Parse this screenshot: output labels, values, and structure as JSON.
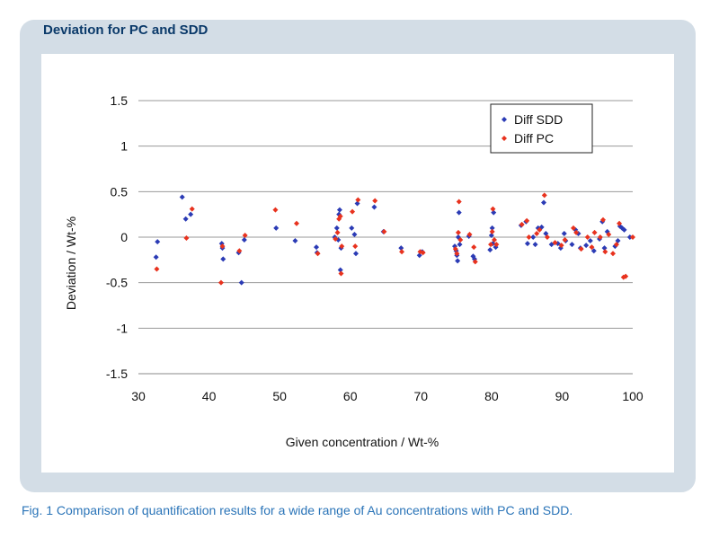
{
  "panel": {
    "title": "Deviation for PC and SDD"
  },
  "caption": "Fig. 1 Comparison of quantification results for a wide range of Au concentrations with PC and SDD.",
  "colors": {
    "panel_bg": "#d3dde6",
    "title": "#0b3a6a",
    "caption": "#2a74b8",
    "sdd": "#2b3bb5",
    "pc": "#e8321e"
  },
  "chart_data": {
    "type": "scatter",
    "title": "",
    "xlabel": "Given concentration / Wt-%",
    "ylabel": "Deviation / Wt-%",
    "xlim": [
      30,
      100
    ],
    "ylim": [
      -1.5,
      1.5
    ],
    "xticks": [
      "30",
      "40",
      "50",
      "60",
      "70",
      "80",
      "90",
      "100"
    ],
    "yticks": [
      "1.5",
      "1",
      "0.5",
      "0",
      "-0.5",
      "-1",
      "-1.5"
    ],
    "grid": "horizontal",
    "legend_position": "top-right",
    "series": [
      {
        "name": "Diff SDD",
        "color": "#2b3bb5",
        "points": [
          [
            32.5,
            -0.22
          ],
          [
            32.7,
            -0.05
          ],
          [
            36.2,
            0.44
          ],
          [
            36.7,
            0.2
          ],
          [
            37.4,
            0.25
          ],
          [
            41.8,
            -0.07
          ],
          [
            41.9,
            -0.12
          ],
          [
            42.0,
            -0.24
          ],
          [
            44.2,
            -0.17
          ],
          [
            44.6,
            -0.5
          ],
          [
            45.0,
            -0.03
          ],
          [
            49.5,
            0.1
          ],
          [
            52.2,
            -0.04
          ],
          [
            55.2,
            -0.11
          ],
          [
            55.3,
            -0.17
          ],
          [
            57.8,
            0.0
          ],
          [
            58.1,
            0.1
          ],
          [
            58.3,
            -0.03
          ],
          [
            58.4,
            0.25
          ],
          [
            58.5,
            0.3
          ],
          [
            58.6,
            -0.36
          ],
          [
            58.7,
            -0.12
          ],
          [
            60.2,
            0.1
          ],
          [
            60.6,
            0.03
          ],
          [
            60.8,
            -0.18
          ],
          [
            61.0,
            0.37
          ],
          [
            63.4,
            0.33
          ],
          [
            64.7,
            0.06
          ],
          [
            67.2,
            -0.12
          ],
          [
            69.8,
            -0.2
          ],
          [
            70.2,
            -0.16
          ],
          [
            74.8,
            -0.1
          ],
          [
            75.0,
            -0.15
          ],
          [
            75.1,
            -0.2
          ],
          [
            75.2,
            -0.26
          ],
          [
            75.3,
            0.0
          ],
          [
            75.4,
            0.27
          ],
          [
            75.5,
            -0.08
          ],
          [
            76.8,
            0.01
          ],
          [
            77.4,
            -0.21
          ],
          [
            77.6,
            -0.24
          ],
          [
            79.8,
            -0.14
          ],
          [
            80.0,
            0.02
          ],
          [
            80.1,
            0.1
          ],
          [
            80.2,
            -0.07
          ],
          [
            80.3,
            0.27
          ],
          [
            80.6,
            -0.11
          ],
          [
            84.2,
            0.13
          ],
          [
            84.9,
            0.17
          ],
          [
            85.1,
            -0.07
          ],
          [
            85.9,
            0.0
          ],
          [
            86.2,
            -0.08
          ],
          [
            86.6,
            0.1
          ],
          [
            87.1,
            0.11
          ],
          [
            87.4,
            0.38
          ],
          [
            87.7,
            0.04
          ],
          [
            88.5,
            -0.08
          ],
          [
            89.4,
            -0.07
          ],
          [
            89.8,
            -0.12
          ],
          [
            90.3,
            0.04
          ],
          [
            90.5,
            -0.04
          ],
          [
            91.4,
            -0.08
          ],
          [
            91.9,
            0.08
          ],
          [
            92.3,
            0.04
          ],
          [
            92.6,
            -0.12
          ],
          [
            93.4,
            -0.09
          ],
          [
            94.0,
            -0.04
          ],
          [
            94.5,
            -0.15
          ],
          [
            95.3,
            -0.02
          ],
          [
            95.7,
            0.17
          ],
          [
            96.0,
            -0.12
          ],
          [
            96.4,
            0.06
          ],
          [
            97.5,
            -0.1
          ],
          [
            97.9,
            -0.04
          ],
          [
            98.2,
            0.12
          ],
          [
            98.5,
            0.1
          ],
          [
            98.8,
            0.08
          ],
          [
            99.6,
            0.0
          ]
        ]
      },
      {
        "name": "Diff PC",
        "color": "#e8321e",
        "points": [
          [
            32.6,
            -0.35
          ],
          [
            36.8,
            -0.01
          ],
          [
            37.6,
            0.31
          ],
          [
            41.7,
            -0.5
          ],
          [
            41.9,
            -0.1
          ],
          [
            44.3,
            -0.15
          ],
          [
            45.1,
            0.02
          ],
          [
            49.4,
            0.3
          ],
          [
            52.4,
            0.15
          ],
          [
            55.4,
            -0.18
          ],
          [
            57.9,
            -0.02
          ],
          [
            58.2,
            0.05
          ],
          [
            58.4,
            0.2
          ],
          [
            58.6,
            0.23
          ],
          [
            58.7,
            -0.4
          ],
          [
            58.8,
            -0.1
          ],
          [
            60.3,
            0.28
          ],
          [
            60.7,
            -0.1
          ],
          [
            61.1,
            0.41
          ],
          [
            63.5,
            0.4
          ],
          [
            64.8,
            0.06
          ],
          [
            67.3,
            -0.16
          ],
          [
            69.9,
            -0.16
          ],
          [
            70.3,
            -0.17
          ],
          [
            74.9,
            -0.13
          ],
          [
            75.1,
            -0.18
          ],
          [
            75.3,
            0.05
          ],
          [
            75.4,
            0.39
          ],
          [
            75.6,
            -0.03
          ],
          [
            76.9,
            0.03
          ],
          [
            77.5,
            -0.11
          ],
          [
            77.7,
            -0.27
          ],
          [
            79.9,
            -0.08
          ],
          [
            80.1,
            0.06
          ],
          [
            80.2,
            0.31
          ],
          [
            80.4,
            -0.03
          ],
          [
            80.7,
            -0.08
          ],
          [
            84.3,
            0.14
          ],
          [
            85.0,
            0.18
          ],
          [
            85.3,
            0.0
          ],
          [
            86.4,
            0.04
          ],
          [
            86.8,
            0.08
          ],
          [
            87.5,
            0.46
          ],
          [
            87.9,
            0.0
          ],
          [
            89.0,
            -0.06
          ],
          [
            89.9,
            -0.09
          ],
          [
            90.4,
            -0.03
          ],
          [
            91.6,
            0.1
          ],
          [
            92.0,
            0.05
          ],
          [
            92.7,
            -0.13
          ],
          [
            93.6,
            0.0
          ],
          [
            94.2,
            -0.11
          ],
          [
            94.6,
            0.05
          ],
          [
            95.4,
            0.0
          ],
          [
            95.8,
            0.19
          ],
          [
            96.1,
            -0.16
          ],
          [
            96.6,
            0.03
          ],
          [
            97.2,
            -0.18
          ],
          [
            97.7,
            -0.08
          ],
          [
            98.1,
            0.15
          ],
          [
            98.7,
            -0.44
          ],
          [
            99.0,
            -0.43
          ],
          [
            100.0,
            0.0
          ]
        ]
      }
    ]
  }
}
